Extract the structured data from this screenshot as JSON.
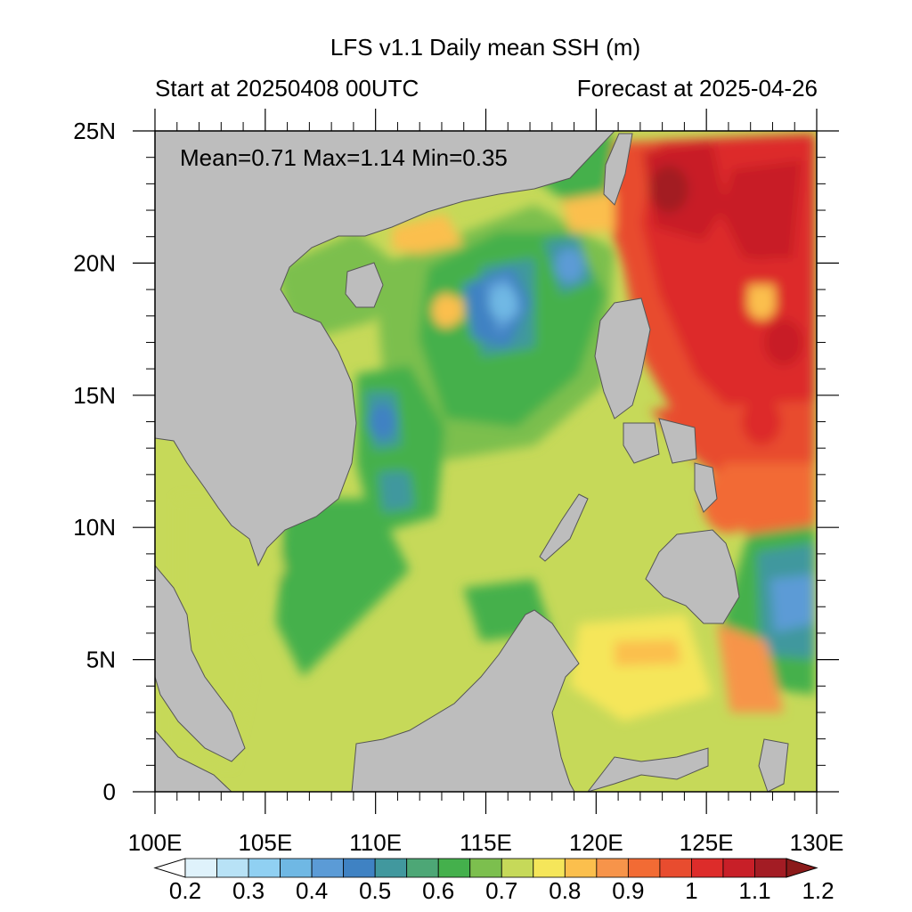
{
  "title": "LFS v1.1 Daily mean SSH (m)",
  "start_label": "Start at 20250408 00UTC",
  "forecast_label": "Forecast at 2025-04-26",
  "stats": "Mean=0.71  Max=1.14  Min=0.35",
  "map": {
    "lon_range": [
      100,
      130
    ],
    "lat_range": [
      0,
      25
    ],
    "lon_ticks": [
      "100E",
      "105E",
      "110E",
      "115E",
      "120E",
      "125E",
      "130E"
    ],
    "lat_ticks": [
      "0",
      "5N",
      "10N",
      "15N",
      "20N",
      "25N"
    ],
    "land_color": "#bdbdbd",
    "default_ocean_color": "#c6d959"
  },
  "colorbar": {
    "labels": [
      "0.2",
      "0.3",
      "0.4",
      "0.5",
      "0.6",
      "0.7",
      "0.8",
      "0.9",
      "1",
      "1.1",
      "1.2"
    ],
    "levels": [
      0.2,
      0.25,
      0.3,
      0.35,
      0.4,
      0.45,
      0.5,
      0.55,
      0.6,
      0.65,
      0.7,
      0.75,
      0.8,
      0.85,
      0.9,
      0.95,
      1.0,
      1.05,
      1.1,
      1.15,
      1.2
    ],
    "colors": [
      "#ffffff",
      "#dff2fb",
      "#b8e2f6",
      "#90d0f2",
      "#6fb8e4",
      "#5b9bd6",
      "#3f82c3",
      "#41989e",
      "#4da776",
      "#44b04c",
      "#7cbf4e",
      "#c6d959",
      "#f5e65a",
      "#fbbf4d",
      "#f7944a",
      "#f26b34",
      "#e84c2f",
      "#dd2c2a",
      "#c81f28",
      "#a31c24",
      "#8b1a1a"
    ]
  },
  "chart_data": {
    "type": "heatmap",
    "variable": "Daily mean sea surface height",
    "units": "m",
    "title": "LFS v1.1 Daily mean SSH (m)",
    "stats": {
      "mean": 0.71,
      "max": 1.14,
      "min": 0.35
    },
    "x_range": [
      100,
      130
    ],
    "y_range": [
      0,
      25
    ],
    "features": [
      {
        "name": "high",
        "lon": 123.3,
        "lat": 22.8,
        "value": 1.14
      },
      {
        "name": "high",
        "lon": 127.5,
        "lat": 21.0,
        "value": 1.05
      },
      {
        "name": "high",
        "lon": 128.5,
        "lat": 17.0,
        "value": 1.05
      },
      {
        "name": "high",
        "lon": 126.0,
        "lat": 18.5,
        "value": 1.0
      },
      {
        "name": "high",
        "lon": 127.5,
        "lat": 14.0,
        "value": 1.0
      },
      {
        "name": "ridge",
        "lon": 126.0,
        "lat": 11.0,
        "value": 0.92
      },
      {
        "name": "low",
        "lon": 115.8,
        "lat": 18.5,
        "value": 0.35
      },
      {
        "name": "low",
        "lon": 118.8,
        "lat": 19.9,
        "value": 0.42
      },
      {
        "name": "low",
        "lon": 110.3,
        "lat": 14.0,
        "value": 0.48
      },
      {
        "name": "low",
        "lon": 111.0,
        "lat": 11.5,
        "value": 0.52
      },
      {
        "name": "low",
        "lon": 128.7,
        "lat": 7.2,
        "value": 0.4
      },
      {
        "name": "local high",
        "lon": 113.2,
        "lat": 18.2,
        "value": 0.82
      },
      {
        "name": "local high",
        "lon": 127.5,
        "lat": 18.5,
        "value": 0.82
      }
    ]
  }
}
